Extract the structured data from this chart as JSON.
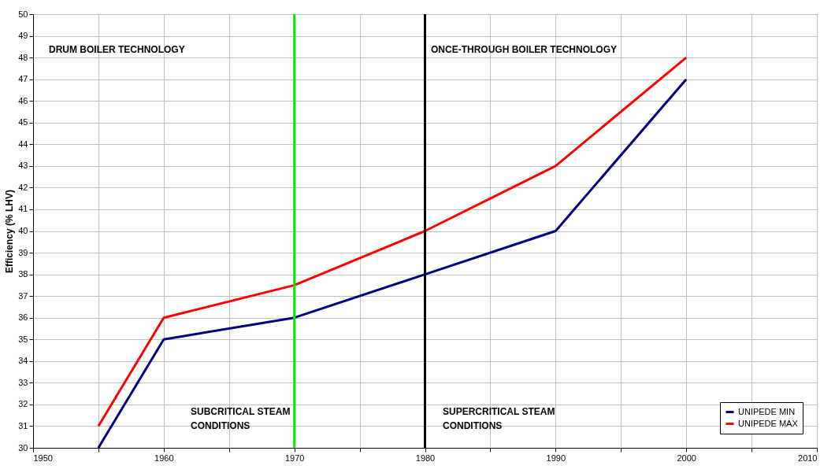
{
  "chart_data": {
    "type": "line",
    "ylabel": "Efficiency (% LHV)",
    "x": [
      1955,
      1960,
      1970,
      1980,
      1990,
      2000
    ],
    "series": [
      {
        "name": "UNIPEDE MIN",
        "color": "#000080",
        "values": [
          30,
          35,
          36,
          38,
          40,
          47
        ]
      },
      {
        "name": "UNIPEDE MAX",
        "color": "#ff0000",
        "values": [
          31,
          36,
          37.5,
          40,
          43,
          48
        ]
      }
    ],
    "xlim": [
      1950,
      2010
    ],
    "xticks": [
      1950,
      {
        "value": 1955,
        "label": null
      },
      1960,
      {
        "value": 1965,
        "label": null
      },
      1970,
      {
        "value": 1975,
        "label": null
      },
      1980,
      {
        "value": 1985,
        "label": null
      },
      1990,
      {
        "value": 1995,
        "label": null
      },
      2000,
      {
        "value": 2005,
        "label": null
      },
      2010
    ],
    "ylim": [
      30,
      50
    ],
    "yticks": [
      30,
      31,
      32,
      33,
      34,
      35,
      36,
      37,
      38,
      39,
      40,
      41,
      42,
      43,
      44,
      45,
      46,
      47,
      48,
      49,
      50
    ],
    "ref_lines": [
      {
        "axis": "x",
        "value": 1970,
        "color": "#00ee00"
      },
      {
        "axis": "x",
        "value": 1980,
        "color": "#000000"
      }
    ],
    "annotations": [
      "DRUM BOILER TECHNOLOGY",
      "ONCE-THROUGH BOILER TECHNOLOGY",
      "SUBCRITICAL STEAM\nCONDITIONS",
      "SUPERCRITICAL STEAM\nCONDITIONS"
    ],
    "grid": true,
    "legend": "bottom right",
    "marker": "none",
    "line_style": "solid"
  }
}
